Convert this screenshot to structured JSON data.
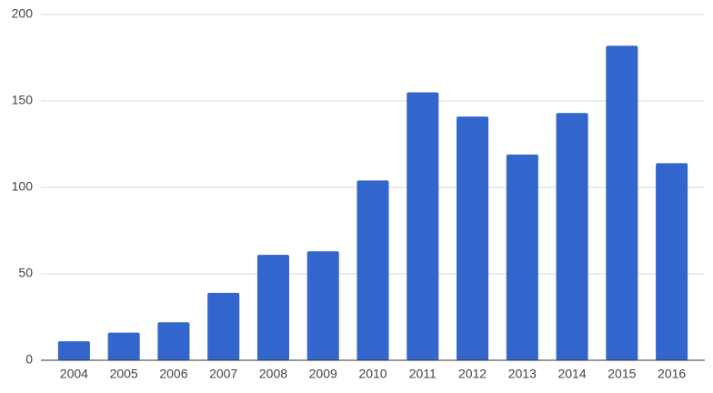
{
  "chart_data": {
    "type": "bar",
    "categories": [
      "2004",
      "2005",
      "2006",
      "2007",
      "2008",
      "2009",
      "2010",
      "2011",
      "2012",
      "2013",
      "2014",
      "2015",
      "2016"
    ],
    "values": [
      11,
      16,
      22,
      39,
      61,
      63,
      104,
      155,
      141,
      119,
      143,
      182,
      114
    ],
    "color": "#3366cc",
    "ylim": [
      0,
      200
    ],
    "yticks": [
      0,
      50,
      100,
      150,
      200
    ],
    "grid": true
  }
}
